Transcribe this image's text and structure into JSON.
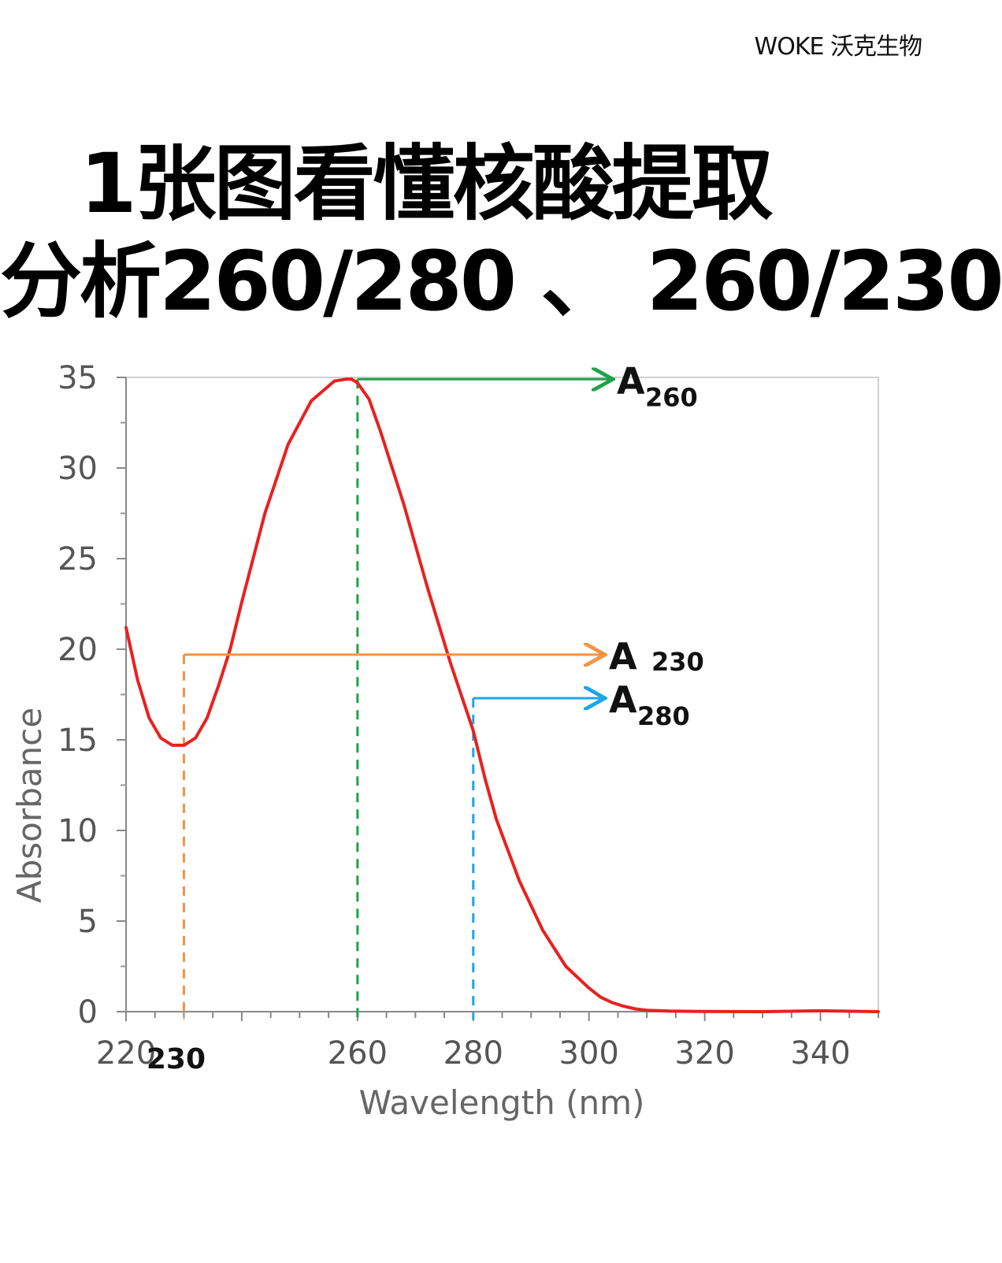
{
  "brand": "WOKE 沃克生物",
  "title": {
    "line1": "1张图看懂核酸提取",
    "line2": "分析260/280 、 260/230"
  },
  "chart_data": {
    "type": "line",
    "xlabel": "Wavelength (nm)",
    "ylabel": "Absorbance",
    "xlim": [
      220,
      350
    ],
    "ylim": [
      0,
      35
    ],
    "x_ticks": [
      "220",
      "260",
      "280",
      "300",
      "320",
      "340"
    ],
    "x_extra_label": "230",
    "y_ticks": [
      "0",
      "5",
      "10",
      "15",
      "20",
      "25",
      "30",
      "35"
    ],
    "grid": false,
    "colors": {
      "curve": "#e8211e",
      "a260": "#1fa34a",
      "a230": "#f39443",
      "a280": "#1ba6e6"
    },
    "series": [
      {
        "x": [
          220,
          222,
          224,
          226,
          228,
          230,
          232,
          234,
          236,
          238,
          240,
          244,
          248,
          252,
          256,
          258,
          259,
          260,
          262,
          264,
          268,
          272,
          276,
          280,
          282,
          284,
          288,
          292,
          296,
          300,
          302,
          304,
          306,
          308,
          310,
          314,
          320,
          330,
          340,
          350
        ],
        "y": [
          21.2,
          18.3,
          16.2,
          15.1,
          14.7,
          14.7,
          15.1,
          16.2,
          18.0,
          20.0,
          22.6,
          27.5,
          31.3,
          33.7,
          34.8,
          34.9,
          34.9,
          34.7,
          33.8,
          32.0,
          28.0,
          23.5,
          19.3,
          15.5,
          12.9,
          10.6,
          7.2,
          4.5,
          2.5,
          1.3,
          0.8,
          0.5,
          0.3,
          0.15,
          0.08,
          0.03,
          0.01,
          0.0,
          0.05,
          0.0
        ]
      }
    ],
    "annotations": [
      {
        "id": "a260",
        "label_main": "A",
        "label_sub": "260",
        "x": 260,
        "y": 34.9
      },
      {
        "id": "a230",
        "label_main": "A",
        "label_sub": "230",
        "x": 230,
        "y": 19.7
      },
      {
        "id": "a280",
        "label_main": "A",
        "label_sub": "280",
        "x": 280,
        "y": 17.3
      }
    ]
  }
}
